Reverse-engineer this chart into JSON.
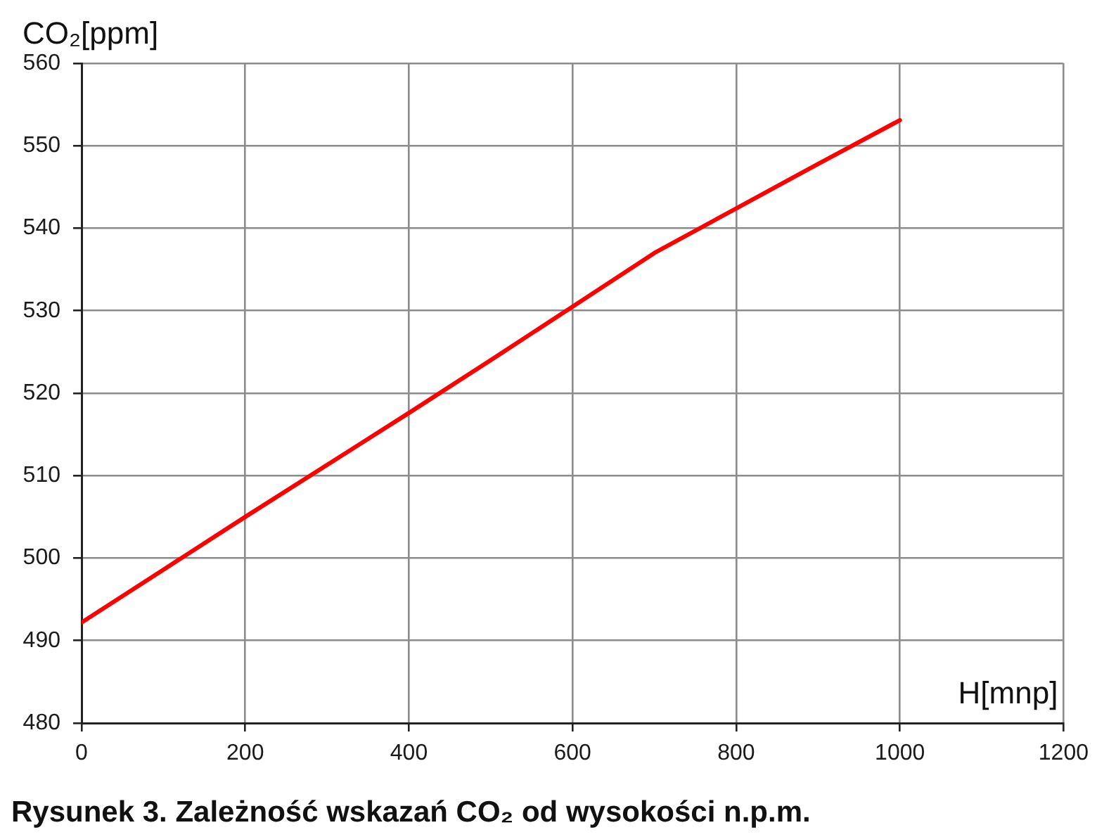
{
  "chart_data": {
    "type": "line",
    "ylabel": "CO₂[ppm]",
    "xlabel": "H[mnp]",
    "annotations": [
      "Rysunek 3. Zależność wskazań CO₂ od wysokości n.p.m."
    ],
    "x": [
      0,
      100,
      200,
      300,
      400,
      500,
      600,
      700,
      800,
      900,
      1000
    ],
    "series": [
      {
        "color": "#ff0000",
        "values": [
          492.2,
          498.6,
          505.0,
          511.3,
          517.6,
          524.0,
          530.5,
          537.0,
          542.4,
          547.8,
          553.1
        ]
      }
    ],
    "xlim": [
      0,
      1200
    ],
    "xticks": [
      0,
      200,
      400,
      600,
      800,
      1000,
      1200
    ],
    "ylim": [
      480,
      560
    ],
    "yticks": [
      480,
      490,
      500,
      510,
      520,
      530,
      540,
      550,
      560
    ],
    "grid": true,
    "marker": "none",
    "line_style": "solid"
  }
}
